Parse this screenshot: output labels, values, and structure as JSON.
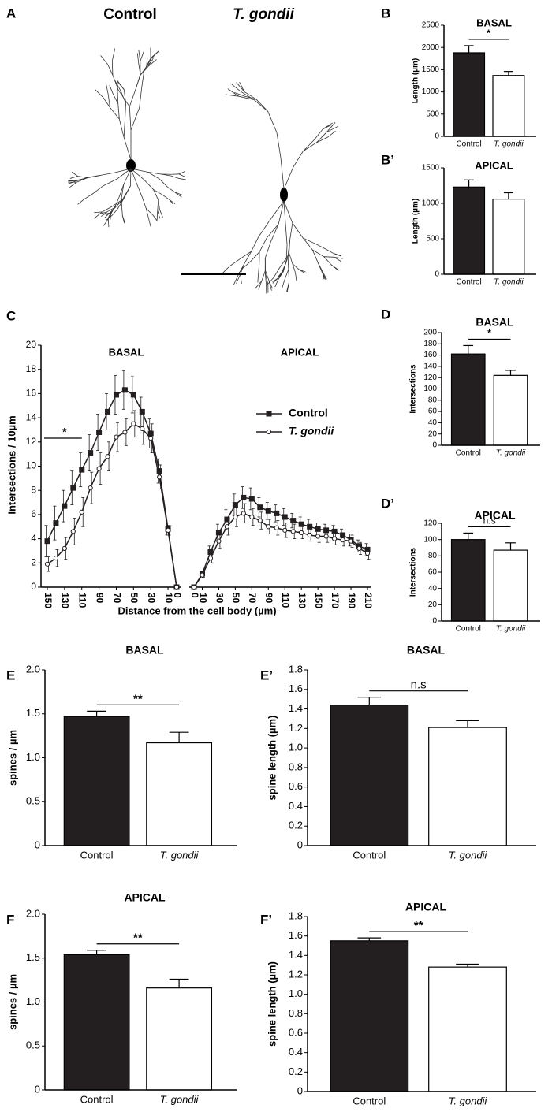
{
  "panel_a": {
    "label": "A",
    "titles": [
      "Control",
      "T. gondii"
    ]
  },
  "chart_data": [
    {
      "type": "bar",
      "panel": "B",
      "title": "BASAL",
      "ylabel": "Length (µm)",
      "categories": [
        "Control",
        "T. gondii"
      ],
      "values": [
        1880,
        1370
      ],
      "errors": [
        160,
        90
      ],
      "colors": [
        "#231f20",
        "#ffffff"
      ],
      "ylim": [
        0,
        2500
      ],
      "yticks": [
        0,
        500,
        1000,
        1500,
        2000,
        2500
      ],
      "annotation": "*"
    },
    {
      "type": "bar",
      "panel": "B’",
      "title": "APICAL",
      "ylabel": "Length (µm)",
      "categories": [
        "Control",
        "T. gondii"
      ],
      "values": [
        1230,
        1060
      ],
      "errors": [
        100,
        90
      ],
      "colors": [
        "#231f20",
        "#ffffff"
      ],
      "ylim": [
        0,
        1500
      ],
      "yticks": [
        0,
        500,
        1000,
        1500
      ]
    },
    {
      "type": "line",
      "panel": "C",
      "ylabel": "Intersections / 10µm",
      "xlabel": "Distance from the cell body (µm)",
      "ylim": [
        0,
        20
      ],
      "yticks": [
        0,
        2,
        4,
        6,
        8,
        10,
        12,
        14,
        16,
        18,
        20
      ],
      "series": [
        {
          "name": "Control",
          "color": "#231f20",
          "marker": "square"
        },
        {
          "name": "T. gondii",
          "color": "#231f20",
          "marker": "circle"
        }
      ],
      "subplots": [
        {
          "title": "BASAL",
          "x": [
            150,
            140,
            130,
            120,
            110,
            100,
            90,
            80,
            70,
            60,
            50,
            40,
            30,
            20,
            10,
            0
          ],
          "xlim": [
            150,
            0
          ],
          "xticks": [
            150,
            130,
            110,
            90,
            70,
            50,
            30,
            10,
            0
          ],
          "annotation": "*",
          "series": [
            {
              "values": [
                3.8,
                5.3,
                6.7,
                8.2,
                9.7,
                11.1,
                12.8,
                14.5,
                15.9,
                16.3,
                15.9,
                14.5,
                12.7,
                9.6,
                4.8,
                0
              ],
              "errors": [
                1.3,
                1.4,
                1.3,
                1.4,
                1.4,
                1.5,
                1.5,
                1.5,
                1.6,
                1.6,
                1.5,
                1.2,
                1.2,
                1.0,
                0.5,
                0
              ]
            },
            {
              "values": [
                1.9,
                2.4,
                3.2,
                4.6,
                6.2,
                8.2,
                9.8,
                10.8,
                12.4,
                12.8,
                13.5,
                13.1,
                12.3,
                9.1,
                4.7,
                0
              ],
              "errors": [
                0.6,
                0.7,
                0.9,
                1.1,
                1.2,
                1.3,
                1.3,
                1.2,
                1.2,
                1.1,
                1.1,
                1.3,
                1.2,
                1.0,
                0.4,
                0
              ]
            }
          ]
        },
        {
          "title": "APICAL",
          "x": [
            0,
            10,
            20,
            30,
            40,
            50,
            60,
            70,
            80,
            90,
            100,
            110,
            120,
            130,
            140,
            150,
            160,
            170,
            180,
            190,
            200,
            210
          ],
          "xlim": [
            0,
            210
          ],
          "xticks": [
            0,
            10,
            30,
            50,
            70,
            90,
            110,
            130,
            150,
            170,
            190,
            210
          ],
          "series": [
            {
              "values": [
                0,
                1.1,
                2.9,
                4.5,
                5.6,
                6.8,
                7.4,
                7.3,
                6.6,
                6.3,
                6.1,
                5.8,
                5.5,
                5.2,
                5.0,
                4.8,
                4.7,
                4.6,
                4.3,
                3.9,
                3.4,
                3.1
              ],
              "errors": [
                0,
                0.2,
                0.5,
                0.7,
                0.8,
                0.9,
                0.9,
                0.9,
                0.8,
                0.7,
                0.7,
                0.7,
                0.6,
                0.6,
                0.6,
                0.5,
                0.5,
                0.5,
                0.5,
                0.5,
                0.5,
                0.5
              ]
            },
            {
              "values": [
                0,
                1.0,
                2.4,
                3.8,
                5.0,
                5.8,
                6.1,
                5.8,
                5.5,
                5.0,
                4.9,
                4.7,
                4.6,
                4.5,
                4.3,
                4.2,
                4.2,
                4.0,
                3.9,
                3.8,
                3.2,
                2.8
              ],
              "errors": [
                0,
                0.2,
                0.4,
                0.6,
                0.7,
                0.8,
                0.8,
                0.7,
                0.7,
                0.6,
                0.6,
                0.6,
                0.6,
                0.5,
                0.5,
                0.5,
                0.5,
                0.5,
                0.5,
                0.5,
                0.5,
                0.5
              ]
            }
          ]
        }
      ]
    },
    {
      "type": "bar",
      "panel": "D",
      "title": "BASAL",
      "ylabel": "Intersections",
      "categories": [
        "Control",
        "T. gondii"
      ],
      "values": [
        162,
        124
      ],
      "errors": [
        15,
        9
      ],
      "colors": [
        "#231f20",
        "#ffffff"
      ],
      "ylim": [
        0,
        200
      ],
      "yticks": [
        0,
        20,
        40,
        60,
        80,
        100,
        120,
        140,
        160,
        180,
        200
      ],
      "annotation": "*"
    },
    {
      "type": "bar",
      "panel": "D’",
      "title": "APICAL",
      "ylabel": "Intersections",
      "categories": [
        "Control",
        "T. gondii"
      ],
      "values": [
        100,
        87
      ],
      "errors": [
        8,
        9
      ],
      "colors": [
        "#231f20",
        "#ffffff"
      ],
      "ylim": [
        0,
        120
      ],
      "yticks": [
        0,
        20,
        40,
        60,
        80,
        100,
        120
      ],
      "annotation": "n.s"
    },
    {
      "type": "bar",
      "panel": "E",
      "title": "BASAL",
      "ylabel": "spines / µm",
      "categories": [
        "Control",
        "T. gondii"
      ],
      "values": [
        1.47,
        1.17
      ],
      "errors": [
        0.06,
        0.12
      ],
      "colors": [
        "#231f20",
        "#ffffff"
      ],
      "ylim": [
        0,
        2
      ],
      "yticks": [
        0,
        0.5,
        {
          "value": 1,
          "label": "1.0"
        },
        1.5,
        {
          "value": 2,
          "label": "2.0"
        }
      ],
      "annotation": "**"
    },
    {
      "type": "bar",
      "panel": "E’",
      "title": "BASAL",
      "ylabel": "spine length (µm)",
      "categories": [
        "Control",
        "T. gondii"
      ],
      "values": [
        1.44,
        1.21
      ],
      "errors": [
        0.08,
        0.07
      ],
      "colors": [
        "#231f20",
        "#ffffff"
      ],
      "ylim": [
        0,
        1.8
      ],
      "yticks": [
        0,
        0.2,
        0.4,
        0.6,
        0.8,
        {
          "value": 1,
          "label": "1.0"
        },
        1.2,
        1.4,
        1.6,
        1.8
      ],
      "annotation": "n.s"
    },
    {
      "type": "bar",
      "panel": "F",
      "title": "APICAL",
      "ylabel": "spines / µm",
      "categories": [
        "Control",
        "T. gondii"
      ],
      "values": [
        1.54,
        1.16
      ],
      "errors": [
        0.05,
        0.1
      ],
      "colors": [
        "#231f20",
        "#ffffff"
      ],
      "ylim": [
        0,
        2
      ],
      "yticks": [
        0,
        0.5,
        {
          "value": 1,
          "label": "1.0"
        },
        1.5,
        {
          "value": 2,
          "label": "2.0"
        }
      ],
      "annotation": "**"
    },
    {
      "type": "bar",
      "panel": "F’",
      "title": "APICAL",
      "ylabel": "spine length (µm)",
      "categories": [
        "Control",
        "T. gondii"
      ],
      "values": [
        1.55,
        1.28
      ],
      "errors": [
        0.03,
        0.03
      ],
      "colors": [
        "#231f20",
        "#ffffff"
      ],
      "ylim": [
        0,
        1.8
      ],
      "yticks": [
        0,
        0.2,
        0.4,
        0.6,
        0.8,
        {
          "value": 1,
          "label": "1.0"
        },
        1.2,
        1.4,
        1.6,
        1.8
      ],
      "annotation": "**"
    }
  ]
}
